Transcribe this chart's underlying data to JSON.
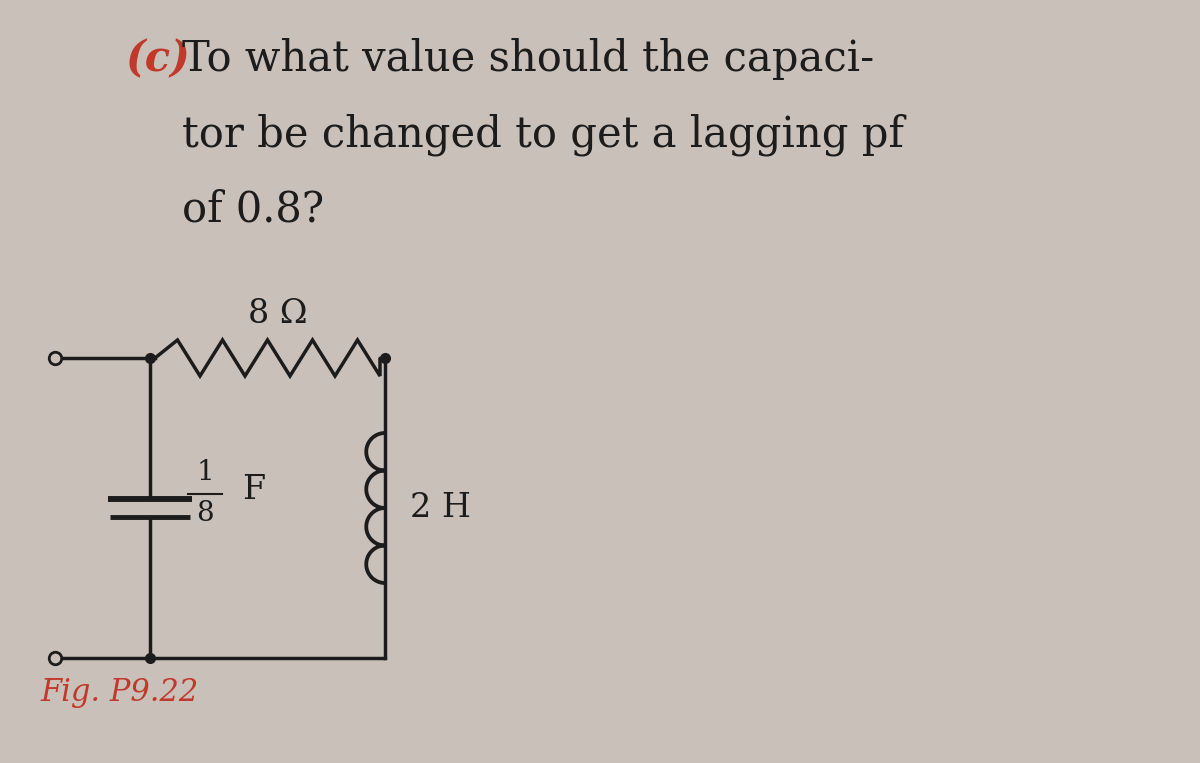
{
  "background_color": "#c9c1b9",
  "title_c_color": "#c0392b",
  "title_color": "#1c1c1c",
  "fig_label_color": "#c0392b",
  "circuit_color": "#1c1c1c",
  "lw": 2.5,
  "resistor_label": "8 Ω",
  "inductor_label": "2 H",
  "fig_label": "Fig. P9.22"
}
